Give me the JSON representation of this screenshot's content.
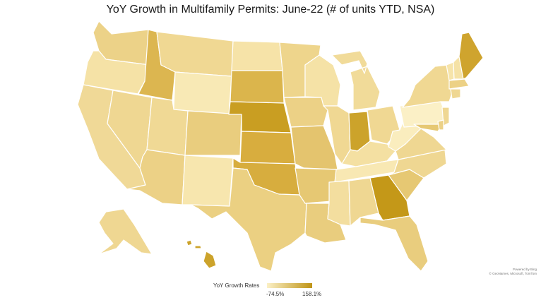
{
  "title": "YoY Growth in Multifamily Permits: June-22 (# of units YTD, NSA)",
  "legend": {
    "title": "YoY Growth Rates",
    "min_label": "-74.5%",
    "max_label": "158.1%",
    "min_color": "#fbf0c6",
    "max_color": "#bf9416"
  },
  "attribution": {
    "line1": "Powered by Bing",
    "line2": "© GeoNames, Microsoft, TomTom"
  },
  "map_data": {
    "type": "choropleth",
    "region": "United States",
    "metric": "YoY Growth Rates",
    "shading": "light = low growth, dark = high growth",
    "states": [
      {
        "state": "WA",
        "color": "#ecd288"
      },
      {
        "state": "OR",
        "color": "#f5e2a6"
      },
      {
        "state": "CA",
        "color": "#f0d997"
      },
      {
        "state": "NV",
        "color": "#efd792"
      },
      {
        "state": "ID",
        "color": "#dcb650"
      },
      {
        "state": "MT",
        "color": "#f0d893"
      },
      {
        "state": "WY",
        "color": "#f8e9b5"
      },
      {
        "state": "UT",
        "color": "#f0d995"
      },
      {
        "state": "AZ",
        "color": "#ecd186"
      },
      {
        "state": "CO",
        "color": "#e9cd7e"
      },
      {
        "state": "NM",
        "color": "#f7e6ae"
      },
      {
        "state": "ND",
        "color": "#f6e3a8"
      },
      {
        "state": "SD",
        "color": "#dbb54c"
      },
      {
        "state": "NE",
        "color": "#c99e22"
      },
      {
        "state": "KS",
        "color": "#d8ad3e"
      },
      {
        "state": "OK",
        "color": "#d7ad3e"
      },
      {
        "state": "TX",
        "color": "#ebd082"
      },
      {
        "state": "MN",
        "color": "#eed58c"
      },
      {
        "state": "IA",
        "color": "#ecd186"
      },
      {
        "state": "MO",
        "color": "#e4c46e"
      },
      {
        "state": "AR",
        "color": "#e6c873"
      },
      {
        "state": "LA",
        "color": "#e9cd7e"
      },
      {
        "state": "WI",
        "color": "#f5e2a6"
      },
      {
        "state": "IL",
        "color": "#f0d893"
      },
      {
        "state": "MI",
        "color": "#f1db99"
      },
      {
        "state": "IN",
        "color": "#cca32b"
      },
      {
        "state": "OH",
        "color": "#f0d893"
      },
      {
        "state": "KY",
        "color": "#f4e0a2"
      },
      {
        "state": "TN",
        "color": "#f8e8b3"
      },
      {
        "state": "MS",
        "color": "#f3de9f"
      },
      {
        "state": "AL",
        "color": "#efd792"
      },
      {
        "state": "GA",
        "color": "#c49818"
      },
      {
        "state": "FL",
        "color": "#e9cd7e"
      },
      {
        "state": "SC",
        "color": "#e6c873"
      },
      {
        "state": "NC",
        "color": "#efd792"
      },
      {
        "state": "VA",
        "color": "#efd792"
      },
      {
        "state": "WV",
        "color": "#faedbe"
      },
      {
        "state": "PA",
        "color": "#fbf0c6"
      },
      {
        "state": "NY",
        "color": "#f0d893"
      },
      {
        "state": "VT",
        "color": "#f6e4aa"
      },
      {
        "state": "NH",
        "color": "#f5e2a6"
      },
      {
        "state": "ME",
        "color": "#cfa42e"
      },
      {
        "state": "MA",
        "color": "#ecd186"
      },
      {
        "state": "CT",
        "color": "#efd792"
      },
      {
        "state": "NJ",
        "color": "#efd792"
      },
      {
        "state": "MD",
        "color": "#e6c873"
      },
      {
        "state": "DE",
        "color": "#ecd186"
      },
      {
        "state": "AK",
        "color": "#efd792"
      },
      {
        "state": "HI",
        "color": "#cca32b"
      }
    ]
  }
}
